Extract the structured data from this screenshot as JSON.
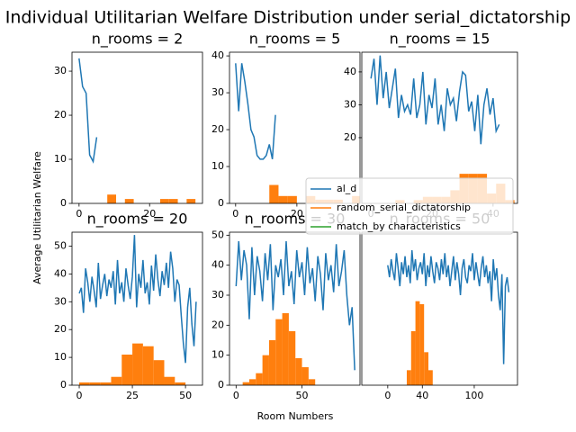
{
  "figure": {
    "title": "Individual Utilitarian Welfare Distribution under serial_dictatorship",
    "xlabel": "Room Numbers",
    "ylabel": "Average Utilitarian Welfare",
    "legend": [
      {
        "name": "al_d",
        "color": "#1f77b4"
      },
      {
        "name": "random_serial_dictatorship",
        "color": "#ff7f0e"
      },
      {
        "name": "match_by characteristics",
        "color": "#2ca02c"
      }
    ]
  },
  "chart_data": [
    {
      "type": "line",
      "title": "n_rooms = 2",
      "color": "#1f77b4",
      "x": [
        0,
        1,
        2,
        3,
        4,
        5
      ],
      "values": [
        32.9,
        26.5,
        25,
        11,
        9.5,
        15
      ],
      "histogram": {
        "color": "#ff7f0e",
        "bins": [
          8,
          10.5,
          13,
          15.5,
          18,
          20.5,
          23,
          25.5,
          28,
          30.5,
          33
        ],
        "counts": [
          2,
          0,
          1,
          0,
          0,
          0,
          1,
          1,
          0,
          1
        ]
      },
      "xlim": [
        -2,
        35
      ],
      "xticks": [
        0,
        20
      ],
      "ylim": [
        0,
        34.3
      ],
      "yticks": [
        0,
        10,
        20,
        30
      ]
    },
    {
      "type": "line",
      "title": "n_rooms = 5",
      "color": "#1f77b4",
      "x": [
        0,
        1,
        2,
        3,
        4,
        5,
        6,
        7,
        8,
        9,
        10,
        11,
        12,
        13
      ],
      "values": [
        38,
        25,
        38,
        33,
        27,
        20,
        18,
        13,
        12,
        12,
        13,
        16,
        12,
        24
      ],
      "histogram": {
        "color": "#ff7f0e",
        "bins": [
          11,
          14,
          17,
          20,
          23,
          26,
          29,
          32,
          35,
          38,
          41
        ],
        "counts": [
          5,
          2,
          2,
          0,
          2,
          1,
          1,
          1,
          0,
          2
        ]
      },
      "xlim": [
        -2,
        40.6
      ],
      "xticks": [
        0,
        20
      ],
      "ylim": [
        0,
        41
      ],
      "yticks": [
        0,
        10,
        20,
        30,
        40
      ]
    },
    {
      "type": "line",
      "title": "n_rooms = 15",
      "color": "#1f77b4",
      "x": [
        0,
        1,
        2,
        3,
        4,
        5,
        6,
        7,
        8,
        9,
        10,
        11,
        12,
        13,
        14,
        15,
        16,
        17,
        18,
        19,
        20,
        21,
        22,
        23,
        24,
        25,
        26,
        27,
        28,
        29,
        30,
        31,
        32,
        33,
        34,
        35,
        36,
        37,
        38,
        39,
        40,
        41,
        42
      ],
      "values": [
        38,
        44,
        30,
        45,
        32,
        40,
        29,
        35,
        41,
        26,
        33,
        28,
        30,
        27,
        38,
        26,
        30,
        40,
        24,
        33,
        29,
        38,
        24,
        30,
        22,
        35,
        30,
        32,
        25,
        34,
        40,
        39,
        28,
        31,
        22,
        33,
        18,
        30,
        35,
        27,
        32,
        22,
        24
      ],
      "histogram": {
        "color": "#ff7f0e",
        "bins": [
          8,
          11,
          14,
          17,
          20,
          23,
          26,
          29,
          32,
          35,
          38,
          41,
          44,
          47
        ],
        "counts": [
          1,
          0,
          1,
          2,
          2,
          2,
          4,
          9,
          9,
          9,
          3,
          6,
          1
        ]
      },
      "xlim": [
        -3,
        48
      ],
      "xticks": [
        0,
        20,
        40
      ],
      "ylim": [
        0,
        46
      ],
      "yticks": [
        20,
        30,
        40
      ]
    },
    {
      "type": "line",
      "title": "n_rooms = 20",
      "color": "#1f77b4",
      "x": [
        0,
        1,
        2,
        3,
        4,
        5,
        6,
        7,
        8,
        9,
        10,
        11,
        12,
        13,
        14,
        15,
        16,
        17,
        18,
        19,
        20,
        21,
        22,
        23,
        24,
        25,
        26,
        27,
        28,
        29,
        30,
        31,
        32,
        33,
        34,
        35,
        36,
        37,
        38,
        39,
        40,
        41,
        42,
        43,
        44,
        45,
        46,
        47,
        48,
        49,
        50,
        51,
        52,
        53,
        54,
        55
      ],
      "values": [
        33,
        35,
        26,
        42,
        37,
        30,
        39,
        34,
        28,
        44,
        31,
        36,
        40,
        32,
        38,
        35,
        41,
        29,
        45,
        33,
        37,
        30,
        42,
        36,
        31,
        39,
        54,
        28,
        40,
        35,
        45,
        33,
        37,
        29,
        43,
        34,
        47,
        38,
        32,
        41,
        36,
        44,
        35,
        48,
        42,
        30,
        38,
        36,
        25,
        15,
        8,
        28,
        35,
        22,
        14,
        30
      ],
      "histogram": {
        "color": "#ff7f0e",
        "bins": [
          0,
          5,
          10,
          15,
          20,
          25,
          30,
          35,
          40,
          45,
          50,
          55
        ],
        "counts": [
          1,
          1,
          1,
          3,
          11,
          15,
          14,
          9,
          3,
          1,
          0
        ]
      },
      "xlim": [
        -3.4,
        58
      ],
      "xticks": [
        0,
        25,
        50
      ],
      "ylim": [
        0,
        55
      ],
      "yticks": [
        0,
        10,
        20,
        30,
        40,
        50
      ]
    },
    {
      "type": "line",
      "title": "n_rooms = 30",
      "color": "#1f77b4",
      "x": [
        0,
        2,
        4,
        6,
        8,
        10,
        12,
        14,
        16,
        18,
        20,
        22,
        24,
        26,
        28,
        30,
        32,
        34,
        36,
        38,
        40,
        42,
        44,
        46,
        48,
        50,
        52,
        54,
        56,
        58,
        60,
        62,
        64,
        66,
        68,
        70,
        72,
        74,
        76,
        78,
        80,
        82,
        84,
        86,
        88,
        90
      ],
      "values": [
        33,
        48,
        35,
        45,
        40,
        22,
        46,
        30,
        43,
        38,
        28,
        44,
        35,
        47,
        25,
        40,
        36,
        42,
        30,
        48,
        33,
        38,
        27,
        45,
        36,
        41,
        30,
        46,
        34,
        39,
        28,
        43,
        37,
        25,
        44,
        35,
        40,
        31,
        47,
        33,
        38,
        45,
        30,
        20,
        26,
        5
      ],
      "histogram": {
        "color": "#ff7f0e",
        "bins": [
          5,
          10,
          15,
          20,
          25,
          30,
          35,
          40,
          45,
          50,
          55,
          60
        ],
        "counts": [
          1,
          2,
          4,
          10,
          15,
          22,
          24,
          18,
          9,
          6,
          2
        ]
      },
      "xlim": [
        -5,
        94
      ],
      "xticks": [
        0,
        50
      ],
      "ylim": [
        0,
        51
      ],
      "yticks": [
        0,
        10,
        20,
        30,
        40,
        50
      ]
    },
    {
      "type": "line",
      "title": "n_rooms = 50",
      "color": "#1f77b4",
      "x": [
        0,
        2,
        4,
        6,
        8,
        10,
        12,
        14,
        16,
        18,
        20,
        22,
        24,
        26,
        28,
        30,
        32,
        34,
        36,
        38,
        40,
        42,
        44,
        46,
        48,
        50,
        52,
        54,
        56,
        58,
        60,
        62,
        64,
        66,
        68,
        70,
        72,
        74,
        76,
        78,
        80,
        82,
        84,
        86,
        88,
        90,
        92,
        94,
        96,
        98,
        100,
        102,
        104,
        106,
        108,
        110,
        112,
        114,
        116,
        118,
        120,
        122,
        124,
        126,
        128,
        130,
        132,
        134,
        136,
        138,
        140
      ],
      "values": [
        40,
        36,
        42,
        38,
        35,
        44,
        39,
        33,
        41,
        37,
        43,
        36,
        40,
        34,
        45,
        38,
        42,
        35,
        39,
        41,
        37,
        44,
        33,
        40,
        36,
        43,
        38,
        34,
        41,
        39,
        35,
        42,
        37,
        44,
        36,
        40,
        33,
        38,
        43,
        35,
        41,
        37,
        30,
        39,
        42,
        36,
        34,
        40,
        38,
        44,
        35,
        41,
        37,
        33,
        39,
        43,
        36,
        40,
        34,
        38,
        28,
        42,
        35,
        39,
        30,
        25,
        37,
        7,
        33,
        36,
        31
      ],
      "histogram": {
        "color": "#ff7f0e",
        "bins": [
          22,
          27,
          32,
          37,
          42,
          47,
          52
        ],
        "counts": [
          5,
          18,
          28,
          27,
          11,
          5
        ]
      },
      "xlim": [
        -30,
        150
      ],
      "xticks": [
        0,
        40,
        100
      ],
      "ylim": [
        0,
        51
      ]
    }
  ]
}
